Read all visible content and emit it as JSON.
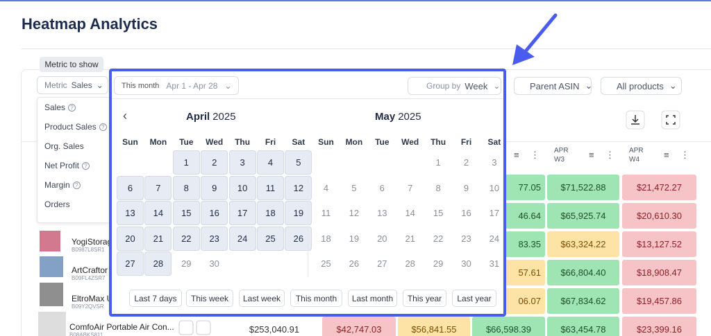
{
  "header": {
    "title": "Heatmap Analytics"
  },
  "tooltip": "Metric to show",
  "metric": {
    "label": "Metric",
    "value": "Sales"
  },
  "metric_options": [
    {
      "label": "Sales",
      "help": true
    },
    {
      "label": "Product Sales",
      "help": true
    },
    {
      "label": "Org. Sales",
      "help": false
    },
    {
      "label": "Net Profit",
      "help": true
    },
    {
      "label": "Margin",
      "help": true
    },
    {
      "label": "Orders",
      "help": false
    }
  ],
  "date_picker": {
    "range_label": "This month",
    "range": "Apr 1 - Apr 28",
    "group_by_label": "Group by",
    "group_by": "Week",
    "weekdays": [
      "Sun",
      "Mon",
      "Tue",
      "Wed",
      "Thu",
      "Fri",
      "Sat"
    ],
    "months": [
      {
        "name": "April",
        "year": "2025",
        "first_weekday": 2,
        "selected": [
          1,
          28
        ],
        "days": [
          1,
          2,
          3,
          4,
          5,
          6,
          7,
          8,
          9,
          10,
          11,
          12,
          13,
          14,
          15,
          16,
          17,
          18,
          19,
          20,
          21,
          22,
          23,
          24,
          25,
          26,
          27,
          28,
          29,
          30
        ]
      },
      {
        "name": "May",
        "year": "2025",
        "first_weekday": 4,
        "selected": null,
        "days": [
          1,
          2,
          3,
          4,
          5,
          6,
          7,
          8,
          9,
          10,
          11,
          12,
          13,
          14,
          15,
          16,
          17,
          18,
          19,
          20,
          21,
          22,
          23,
          24,
          25,
          26,
          27,
          28,
          29,
          30,
          31
        ]
      }
    ],
    "quick_ranges": [
      "Last 7 days",
      "This week",
      "Last week",
      "This month",
      "Last month",
      "This year",
      "Last year"
    ]
  },
  "filters": [
    "Parent ASIN",
    "All products"
  ],
  "table": {
    "columns": [
      null,
      null,
      null,
      null,
      {
        "month": "APR",
        "week": "W3"
      },
      {
        "month": "APR",
        "week": "W4"
      }
    ],
    "rows": [
      {
        "product": null,
        "asin": null,
        "cells": [
          null,
          null,
          null,
          "77.05",
          "$71,522.88",
          "$21,472.27"
        ],
        "tones": [
          null,
          null,
          null,
          "green",
          "green",
          "red"
        ]
      },
      {
        "product": null,
        "asin": null,
        "cells": [
          null,
          null,
          null,
          "46.64",
          "$65,925.74",
          "$20,610.30"
        ],
        "tones": [
          null,
          null,
          null,
          "green",
          "green",
          "red"
        ]
      },
      {
        "product": "YogiStorag",
        "asin": "B0987L8SR1",
        "cells": [
          null,
          null,
          null,
          "83.35",
          "$63,324.22",
          "$13,127.52"
        ],
        "tones": [
          null,
          null,
          null,
          "green",
          "yellow",
          "red"
        ]
      },
      {
        "product": "ArtCraftor",
        "asin": "B09FL4ZSR7",
        "cells": [
          null,
          null,
          null,
          "57.61",
          "$66,804.40",
          "$18,908.47"
        ],
        "tones": [
          null,
          null,
          null,
          "yellow",
          "green",
          "red"
        ]
      },
      {
        "product": "EltroMax U",
        "asin": "B09Y2QVSR",
        "cells": [
          null,
          null,
          null,
          "06.07",
          "$67,834.62",
          "$19,457.86"
        ],
        "tones": [
          null,
          null,
          null,
          "yellow",
          "green",
          "red"
        ]
      },
      {
        "product": "ComfoAir Portable Air Con...",
        "asin": "B08ABKS811",
        "cells": [
          "$253,040.91",
          "$42,747.03",
          "$56,841.55",
          "$66,598.39",
          "$63,454.78",
          "$23,399.16"
        ],
        "tones": [
          null,
          "red",
          "yellow",
          "green",
          "green",
          "red"
        ]
      }
    ]
  }
}
